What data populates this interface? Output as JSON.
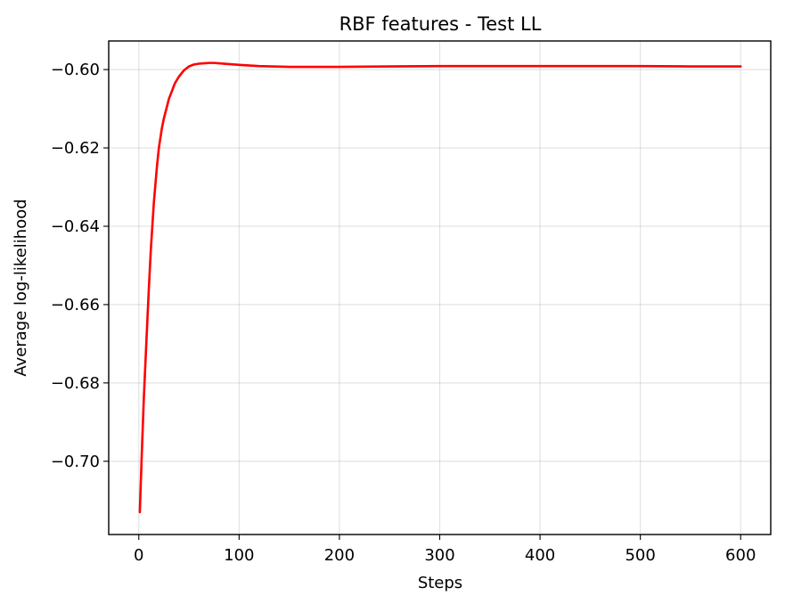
{
  "chart_data": {
    "type": "line",
    "title": "RBF features - Test LL",
    "xlabel": "Steps",
    "ylabel": "Average log-likelihood",
    "xlim": [
      -30,
      630
    ],
    "ylim": [
      -0.7187,
      -0.5927
    ],
    "xticks": [
      0,
      100,
      200,
      300,
      400,
      500,
      600
    ],
    "xtick_labels": [
      "0",
      "100",
      "200",
      "300",
      "400",
      "500",
      "600"
    ],
    "yticks": [
      -0.7,
      -0.68,
      -0.66,
      -0.64,
      -0.62,
      -0.6
    ],
    "ytick_labels": [
      "−0.70",
      "−0.68",
      "−0.66",
      "−0.64",
      "−0.62",
      "−0.60"
    ],
    "grid": true,
    "series": [
      {
        "color": "#ff0000",
        "x": [
          1,
          3,
          5,
          8,
          10,
          12,
          15,
          18,
          20,
          23,
          25,
          28,
          30,
          33,
          36,
          40,
          45,
          50,
          55,
          60,
          65,
          70,
          75,
          80,
          90,
          100,
          120,
          150,
          180,
          200,
          250,
          300,
          350,
          400,
          450,
          500,
          550,
          600
        ],
        "y": [
          -0.713,
          -0.698,
          -0.684,
          -0.667,
          -0.656,
          -0.646,
          -0.634,
          -0.625,
          -0.62,
          -0.615,
          -0.6125,
          -0.6095,
          -0.6075,
          -0.6055,
          -0.6035,
          -0.6018,
          -0.6002,
          -0.5992,
          -0.5987,
          -0.5985,
          -0.5984,
          -0.5983,
          -0.5983,
          -0.5984,
          -0.5986,
          -0.5988,
          -0.5991,
          -0.5993,
          -0.5993,
          -0.5993,
          -0.5992,
          -0.5991,
          -0.5991,
          -0.5991,
          -0.5991,
          -0.5991,
          -0.5992,
          -0.5992
        ]
      }
    ]
  }
}
